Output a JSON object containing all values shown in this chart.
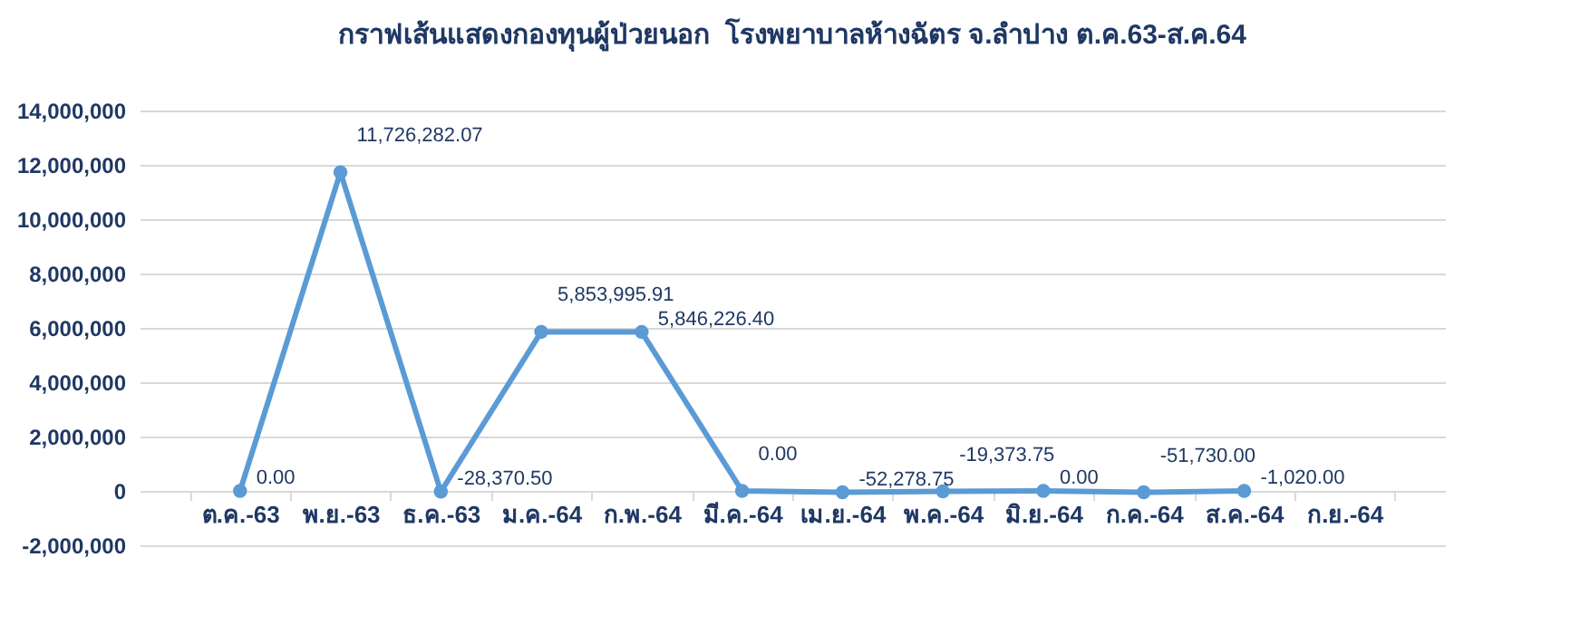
{
  "chart_data": {
    "type": "line",
    "title": "กราฟเส้นแสดงกองทุนผู้ป่วยนอก  โรงพยาบาลห้างฉัตร จ.ลำปาง ต.ค.63-ส.ค.64",
    "categories": [
      "ต.ค.-63",
      "พ.ย.-63",
      "ธ.ค.-63",
      "ม.ค.-64",
      "ก.พ.-64",
      "มี.ค.-64",
      "เม.ย.-64",
      "พ.ค.-64",
      "มิ.ย.-64",
      "ก.ค.-64",
      "ส.ค.-64",
      "ก.ย.-64"
    ],
    "series": [
      {
        "color": "#5b9bd5",
        "values": [
          0,
          11726282.07,
          -28370.5,
          5853995.91,
          5846226.4,
          0,
          -52278.75,
          -19373.75,
          0,
          -51730,
          -1020,
          null
        ],
        "value_labels": [
          "0.00",
          "11,726,282.07",
          "-28,370.50",
          "5,853,995.91",
          "5,846,226.40",
          "0.00",
          "-52,278.75",
          "-19,373.75",
          "0.00",
          "-51,730.00",
          "-1,020.00",
          null
        ]
      }
    ],
    "ylim": [
      -2000000,
      14000000
    ],
    "yticks": [
      {
        "value": -2000000,
        "label": "-2,000,000"
      },
      0,
      {
        "value": 2000000,
        "label": "2,000,000"
      },
      {
        "value": 4000000,
        "label": "4,000,000"
      },
      {
        "value": 6000000,
        "label": "6,000,000"
      },
      {
        "value": 8000000,
        "label": "8,000,000"
      },
      {
        "value": 10000000,
        "label": "10,000,000"
      },
      {
        "value": 12000000,
        "label": "12,000,000"
      },
      {
        "value": 14000000,
        "label": "14,000,000"
      }
    ],
    "grid": "y",
    "marker": "circle",
    "line_style": "solid",
    "legend": false
  }
}
